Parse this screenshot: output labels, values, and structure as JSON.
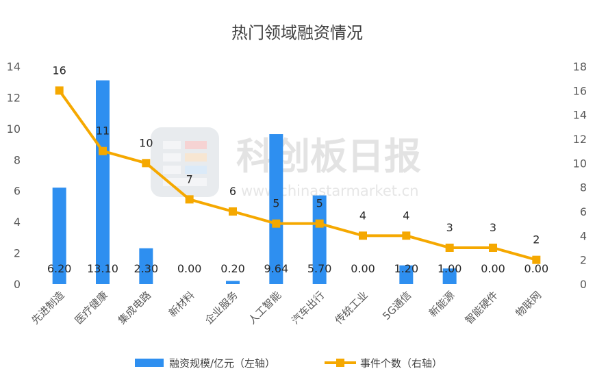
{
  "chart_data": {
    "type": "bar+line",
    "title": "热门领域融资情况",
    "categories": [
      "先进制造",
      "医疗健康",
      "集成电路",
      "新材料",
      "企业服务",
      "人工智能",
      "汽车出行",
      "传统工业",
      "5G通信",
      "新能源",
      "智能硬件",
      "物联网"
    ],
    "series": [
      {
        "name": "融资规模/亿元（左轴）",
        "type": "bar",
        "axis": "left",
        "color": "#2e8ff0",
        "values": [
          6.2,
          13.1,
          2.3,
          0.0,
          0.2,
          9.64,
          5.7,
          0.0,
          1.2,
          1.0,
          0.0,
          0.0
        ],
        "labels": [
          "6.20",
          "13.10",
          "2.30",
          "0.00",
          "0.20",
          "9.64",
          "5.70",
          "0.00",
          "1.20",
          "1.00",
          "0.00",
          "0.00"
        ]
      },
      {
        "name": "事件个数（右轴）",
        "type": "line",
        "axis": "right",
        "color": "#f5a800",
        "marker": "square",
        "values": [
          16,
          11,
          10,
          7,
          6,
          5,
          5,
          4,
          4,
          3,
          3,
          2
        ],
        "labels": [
          "16",
          "11",
          "10",
          "7",
          "6",
          "5",
          "5",
          "4",
          "4",
          "3",
          "3",
          "2"
        ]
      }
    ],
    "y_left": {
      "min": 0,
      "max": 14,
      "ticks": [
        "0",
        "2",
        "4",
        "6",
        "8",
        "10",
        "12",
        "14"
      ]
    },
    "y_right": {
      "min": 0,
      "max": 18,
      "ticks": [
        "0",
        "2",
        "4",
        "6",
        "8",
        "10",
        "12",
        "14",
        "16",
        "18"
      ]
    },
    "grid": false,
    "legend_position": "bottom"
  },
  "watermark": {
    "name": "科创板日报",
    "url": "www.chinastarmarket.cn"
  }
}
